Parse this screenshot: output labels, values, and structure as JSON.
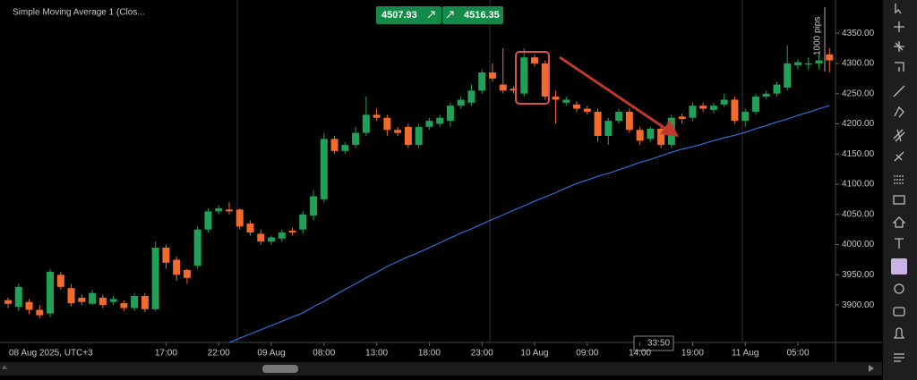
{
  "chart_data": {
    "type": "candlestick",
    "indicator": "Simple Moving Average 1 (Clos...",
    "sell_price": "4507.93",
    "buy_price": "4516.35",
    "pips_label": "1000 pips",
    "countdown": "33:50",
    "date_label": "08 Aug 2025, UTC+3",
    "x_ticks": [
      "17:00",
      "22:00",
      "09 Aug",
      "08:00",
      "13:00",
      "18:00",
      "23:00",
      "10 Aug",
      "09:00",
      "14:00",
      "19:00",
      "11 Aug",
      "05:00"
    ],
    "ylim": [
      3838,
      4405
    ],
    "yticks": [
      {
        "value": 3900,
        "label": "3900.00"
      },
      {
        "value": 3950,
        "label": "3950.00"
      },
      {
        "value": 4000,
        "label": "4000.00"
      },
      {
        "value": 4050,
        "label": "4050.00"
      },
      {
        "value": 4100,
        "label": "4100.00"
      },
      {
        "value": 4150,
        "label": "4150.00"
      },
      {
        "value": 4200,
        "label": "4200.00"
      },
      {
        "value": 4250,
        "label": "4250.00"
      },
      {
        "value": 4300,
        "label": "4300.00"
      },
      {
        "value": 4350,
        "label": "4350.00"
      }
    ],
    "up_color": "#21a058",
    "down_color": "#f26b2d",
    "open": [
      3908,
      3897,
      3905,
      3892,
      3886,
      3950,
      3928,
      3912,
      3902,
      3912,
      3905,
      3903,
      3895,
      3915,
      3893,
      3995,
      3975,
      3958,
      3965,
      4025,
      4055,
      4058,
      4058,
      4035,
      4018,
      4005,
      4010,
      4023,
      4025,
      4048,
      4075,
      4175,
      4155,
      4165,
      4185,
      4215,
      4210,
      4190,
      4195,
      4165,
      4195,
      4200,
      4205,
      4230,
      4235,
      4255,
      4285,
      4265,
      4258,
      4250,
      4310,
      4300,
      4245,
      4235,
      4232,
      4225,
      4220,
      4180,
      4205,
      4220,
      4190,
      4175,
      4192,
      4165,
      4212,
      4210,
      4230,
      4223,
      4232,
      4240,
      4205,
      4220,
      4245,
      4250,
      4260,
      4297,
      4298,
      4300,
      4315
    ],
    "high": [
      3912,
      3935,
      3910,
      3900,
      3960,
      3955,
      3935,
      3917,
      3925,
      3917,
      3915,
      3908,
      3920,
      3920,
      4005,
      4000,
      3980,
      3960,
      4030,
      4060,
      4065,
      4070,
      4060,
      4040,
      4025,
      4015,
      4025,
      4028,
      4055,
      4090,
      4185,
      4180,
      4170,
      4195,
      4245,
      4225,
      4215,
      4195,
      4200,
      4200,
      4210,
      4215,
      4235,
      4245,
      4265,
      4290,
      4300,
      4325,
      4262,
      4325,
      4315,
      4305,
      4255,
      4245,
      4237,
      4230,
      4225,
      4210,
      4225,
      4225,
      4195,
      4195,
      4200,
      4215,
      4217,
      4235,
      4235,
      4235,
      4250,
      4245,
      4225,
      4250,
      4255,
      4270,
      4330,
      4307,
      4310,
      4315,
      4325
    ],
    "low": [
      3895,
      3890,
      3885,
      3878,
      3880,
      3925,
      3898,
      3900,
      3900,
      3895,
      3900,
      3890,
      3890,
      3888,
      3890,
      3960,
      3940,
      3935,
      3960,
      4020,
      4050,
      4050,
      4025,
      4015,
      4000,
      4000,
      4005,
      4015,
      4018,
      4040,
      4070,
      4150,
      4150,
      4160,
      4180,
      4205,
      4180,
      4180,
      4160,
      4160,
      4190,
      4195,
      4195,
      4225,
      4230,
      4250,
      4270,
      4250,
      4250,
      4245,
      4295,
      4240,
      4200,
      4230,
      4220,
      4215,
      4170,
      4165,
      4200,
      4185,
      4165,
      4170,
      4160,
      4160,
      4200,
      4205,
      4220,
      4218,
      4228,
      4200,
      4195,
      4215,
      4240,
      4245,
      4255,
      4290,
      4290,
      4290,
      4285
    ],
    "close": [
      3902,
      3930,
      3892,
      3883,
      3955,
      3930,
      3903,
      3905,
      3920,
      3900,
      3910,
      3895,
      3915,
      3893,
      3995,
      3970,
      3950,
      3945,
      4025,
      4055,
      4060,
      4055,
      4030,
      4020,
      4005,
      4012,
      4020,
      4020,
      4050,
      4080,
      4175,
      4155,
      4165,
      4185,
      4215,
      4210,
      4190,
      4185,
      4165,
      4195,
      4205,
      4210,
      4230,
      4240,
      4255,
      4285,
      4275,
      4255,
      4255,
      4310,
      4300,
      4245,
      4240,
      4240,
      4225,
      4220,
      4180,
      4205,
      4220,
      4190,
      4172,
      4192,
      4165,
      4210,
      4208,
      4230,
      4225,
      4230,
      4240,
      4205,
      4220,
      4245,
      4250,
      4265,
      4300,
      4302,
      4300,
      4305,
      4305
    ],
    "series": [
      {
        "name": "Simple Moving Average 1 (Clos...",
        "color": "#2f6fd6",
        "values": [
          null,
          null,
          null,
          null,
          null,
          null,
          null,
          null,
          null,
          null,
          null,
          null,
          null,
          null,
          null,
          null,
          null,
          null,
          null,
          null,
          null,
          3838,
          3845,
          3852,
          3859,
          3866,
          3873,
          3880,
          3887,
          3897,
          3906,
          3916,
          3926,
          3935,
          3945,
          3954,
          3964,
          3972,
          3980,
          3987,
          3995,
          4003,
          4011,
          4019,
          4026,
          4034,
          4042,
          4049,
          4057,
          4064,
          4072,
          4079,
          4086,
          4094,
          4101,
          4107,
          4113,
          4118,
          4124,
          4130,
          4136,
          4141,
          4147,
          4153,
          4158,
          4162,
          4167,
          4172,
          4177,
          4181,
          4186,
          4192,
          4197,
          4203,
          4208,
          4214,
          4219,
          4225,
          4230
        ]
      }
    ]
  }
}
